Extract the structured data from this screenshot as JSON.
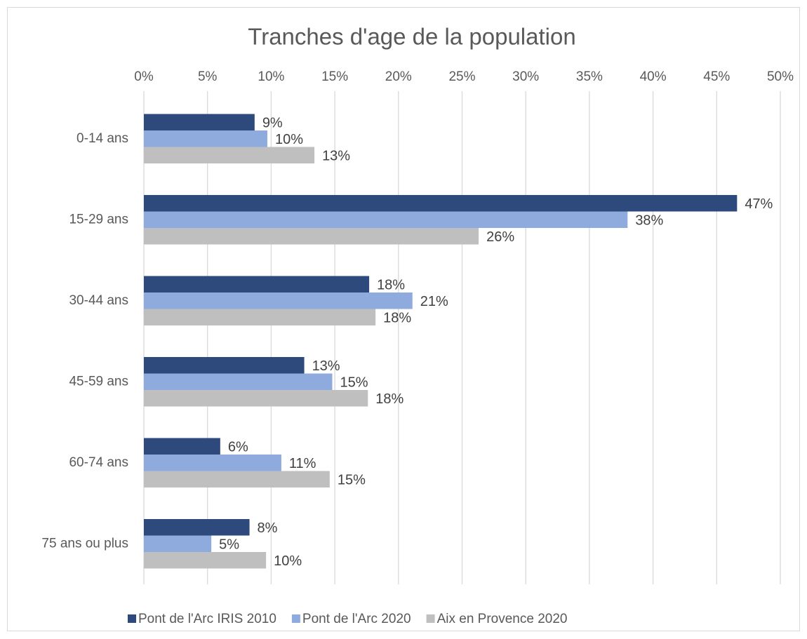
{
  "chart_data": {
    "type": "hbar",
    "title": "Tranches d'age de la population",
    "categories": [
      "0-14 ans",
      "15-29 ans",
      "30-44 ans",
      "45-59 ans",
      "60-74 ans",
      "75 ans ou plus"
    ],
    "series": [
      {
        "name": "Pont de l'Arc IRIS 2010",
        "color": "#2e4a7d",
        "values": [
          8.7,
          46.6,
          17.7,
          12.6,
          6.0,
          8.3
        ],
        "value_labels": [
          "9%",
          "47%",
          "18%",
          "13%",
          "6%",
          "8%"
        ]
      },
      {
        "name": "Pont de l'Arc 2020",
        "color": "#8faadc",
        "values": [
          9.7,
          38.0,
          21.1,
          14.8,
          10.8,
          5.3
        ],
        "value_labels": [
          "10%",
          "38%",
          "21%",
          "15%",
          "11%",
          "5%"
        ]
      },
      {
        "name": "Aix en Provence 2020",
        "color": "#bfbfbf",
        "values": [
          13.4,
          26.3,
          18.2,
          17.6,
          14.6,
          9.6
        ],
        "value_labels": [
          "13%",
          "26%",
          "18%",
          "18%",
          "15%",
          "10%"
        ]
      }
    ],
    "xlim": [
      0,
      50
    ],
    "xticks": [
      {
        "value": 0,
        "label": "0%"
      },
      {
        "value": 5,
        "label": "5%"
      },
      {
        "value": 10,
        "label": "10%"
      },
      {
        "value": 15,
        "label": "15%"
      },
      {
        "value": 20,
        "label": "20%"
      },
      {
        "value": 25,
        "label": "25%"
      },
      {
        "value": 30,
        "label": "30%"
      },
      {
        "value": 35,
        "label": "35%"
      },
      {
        "value": 40,
        "label": "40%"
      },
      {
        "value": 45,
        "label": "45%"
      },
      {
        "value": 50,
        "label": "50%"
      }
    ],
    "grid": true,
    "legend": "bottom"
  }
}
